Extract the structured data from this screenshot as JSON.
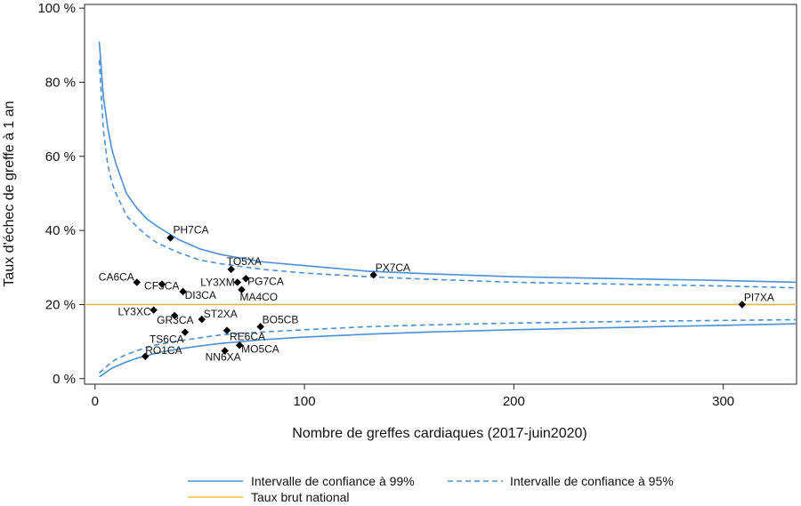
{
  "chart_data": {
    "type": "scatter",
    "title": "",
    "xlabel": "Nombre de greffes cardiaques (2017-juin2020)",
    "ylabel": "Taux d'échec de greffe à 1 an",
    "xlim": [
      -5,
      335
    ],
    "ylim": [
      -1.5,
      101
    ],
    "x_ticks": [
      0,
      100,
      200,
      300
    ],
    "x_tick_labels": [
      "0",
      "100",
      "200",
      "300"
    ],
    "y_ticks": [
      0,
      20,
      40,
      60,
      80,
      100
    ],
    "y_tick_labels": [
      "0 %",
      "20 %",
      "40 %",
      "60 %",
      "80 %",
      "100 %"
    ],
    "grid": false,
    "legend_position": "bottom",
    "national_rate": 20,
    "colors": {
      "ci_line": "#4a90d9",
      "national_line": "#f5b942",
      "points": "#000000"
    },
    "legend": [
      {
        "key": "ci99",
        "label": "Intervalle de confiance à 99%"
      },
      {
        "key": "ci95",
        "label": "Intervalle de confiance à 95%"
      },
      {
        "key": "national",
        "label": "Taux brut national"
      }
    ],
    "ci_curves": {
      "x": [
        2,
        4,
        6,
        8,
        10,
        15,
        20,
        25,
        30,
        40,
        50,
        60,
        80,
        100,
        130,
        160,
        200,
        250,
        300,
        335
      ],
      "upper99": [
        91,
        76,
        68,
        62,
        58,
        50,
        46,
        43,
        41,
        37.5,
        35,
        33.5,
        31.5,
        30.5,
        29,
        28.3,
        27.5,
        27,
        26.5,
        26
      ],
      "upper95": [
        86,
        67,
        58,
        53,
        50,
        44,
        41,
        38.5,
        36.5,
        34,
        32,
        31,
        29.5,
        28.5,
        27.5,
        26.8,
        26,
        25.5,
        25,
        24.5
      ],
      "lower95": [
        1.5,
        2.5,
        3.5,
        4.5,
        5.2,
        6.5,
        7.5,
        8.5,
        9.2,
        10.2,
        11,
        11.8,
        12.6,
        13.2,
        14,
        14.5,
        15,
        15.4,
        15.7,
        15.9
      ],
      "lower99": [
        0.5,
        1.2,
        2,
        2.8,
        3.3,
        4.5,
        5.5,
        6.2,
        7,
        8,
        8.8,
        9.5,
        10.5,
        11.2,
        12,
        12.6,
        13.2,
        13.8,
        14.4,
        14.8
      ]
    },
    "points": [
      {
        "label": "PH7CA",
        "x": 36,
        "y": 38
      },
      {
        "label": "TO5XA",
        "x": 65,
        "y": 29.5
      },
      {
        "label": "PX7CA",
        "x": 133,
        "y": 28
      },
      {
        "label": "LY3XM",
        "x": 68,
        "y": 26
      },
      {
        "label": "PG7CA",
        "x": 72,
        "y": 27
      },
      {
        "label": "MA4CO",
        "x": 70,
        "y": 24
      },
      {
        "label": "CA6CA",
        "x": 20,
        "y": 26
      },
      {
        "label": "CF3CA",
        "x": 32,
        "y": 25.5
      },
      {
        "label": "DI3CA",
        "x": 42,
        "y": 23.5
      },
      {
        "label": "LY3XC",
        "x": 28,
        "y": 18.5
      },
      {
        "label": "GR3CA",
        "x": 38,
        "y": 17
      },
      {
        "label": "ST2XA",
        "x": 51,
        "y": 16
      },
      {
        "label": "BO5CB",
        "x": 79,
        "y": 14
      },
      {
        "label": "TS6CA",
        "x": 43,
        "y": 12.5
      },
      {
        "label": "RE6CA",
        "x": 63,
        "y": 13
      },
      {
        "label": "RO1CA",
        "x": 24,
        "y": 6
      },
      {
        "label": "NN6XA",
        "x": 62,
        "y": 7.5
      },
      {
        "label": "MO5CA",
        "x": 69,
        "y": 9
      },
      {
        "label": "PI7XA",
        "x": 309,
        "y": 20
      }
    ]
  }
}
